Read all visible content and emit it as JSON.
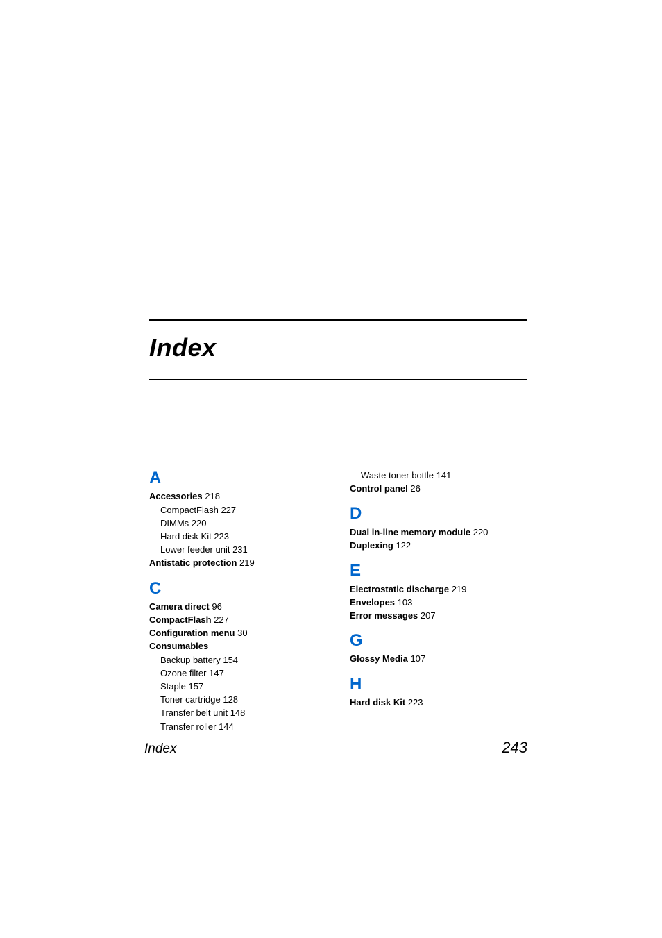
{
  "title": "Index",
  "colors": {
    "letter": "#0066cc",
    "text": "#000000",
    "background": "#ffffff",
    "rule": "#000000"
  },
  "typography": {
    "title_fontsize": 36,
    "title_style": "italic bold",
    "letter_fontsize": 24,
    "letter_weight": "bold",
    "body_fontsize": 13,
    "footer_title_fontsize": 19,
    "footer_page_fontsize": 22,
    "font_family": "Arial"
  },
  "footer": {
    "title": "Index",
    "page_number": "243"
  },
  "left_column": [
    {
      "letter": "A",
      "entries": [
        {
          "term": "Accessories",
          "page": "218",
          "subs": [
            {
              "label": "CompactFlash",
              "page": "227"
            },
            {
              "label": "DIMMs",
              "page": "220"
            },
            {
              "label": "Hard disk Kit",
              "page": "223"
            },
            {
              "label": "Lower feeder unit",
              "page": "231"
            }
          ]
        },
        {
          "term": "Antistatic protection",
          "page": "219",
          "subs": []
        }
      ]
    },
    {
      "letter": "C",
      "entries": [
        {
          "term": "Camera direct",
          "page": "96",
          "subs": []
        },
        {
          "term": "CompactFlash",
          "page": "227",
          "subs": []
        },
        {
          "term": "Configuration menu",
          "page": "30",
          "subs": []
        },
        {
          "term": "Consumables",
          "page": "",
          "subs": [
            {
              "label": "Backup battery",
              "page": "154"
            },
            {
              "label": "Ozone filter",
              "page": "147"
            },
            {
              "label": "Staple",
              "page": "157"
            },
            {
              "label": "Toner cartridge",
              "page": "128"
            },
            {
              "label": "Transfer belt unit",
              "page": "148"
            },
            {
              "label": "Transfer roller",
              "page": "144"
            }
          ]
        }
      ]
    }
  ],
  "right_column_top": {
    "subs": [
      {
        "label": "Waste toner bottle",
        "page": "141"
      }
    ],
    "entries": [
      {
        "term": "Control panel",
        "page": "26",
        "subs": []
      }
    ]
  },
  "right_column": [
    {
      "letter": "D",
      "entries": [
        {
          "term": "Dual in-line memory module",
          "page": "220",
          "subs": []
        },
        {
          "term": "Duplexing",
          "page": "122",
          "subs": []
        }
      ]
    },
    {
      "letter": "E",
      "entries": [
        {
          "term": "Electrostatic discharge",
          "page": "219",
          "subs": []
        },
        {
          "term": "Envelopes",
          "page": "103",
          "subs": []
        },
        {
          "term": "Error messages",
          "page": "207",
          "subs": []
        }
      ]
    },
    {
      "letter": "G",
      "entries": [
        {
          "term": "Glossy Media",
          "page": "107",
          "subs": []
        }
      ]
    },
    {
      "letter": "H",
      "entries": [
        {
          "term": "Hard disk Kit",
          "page": "223",
          "subs": []
        }
      ]
    }
  ]
}
